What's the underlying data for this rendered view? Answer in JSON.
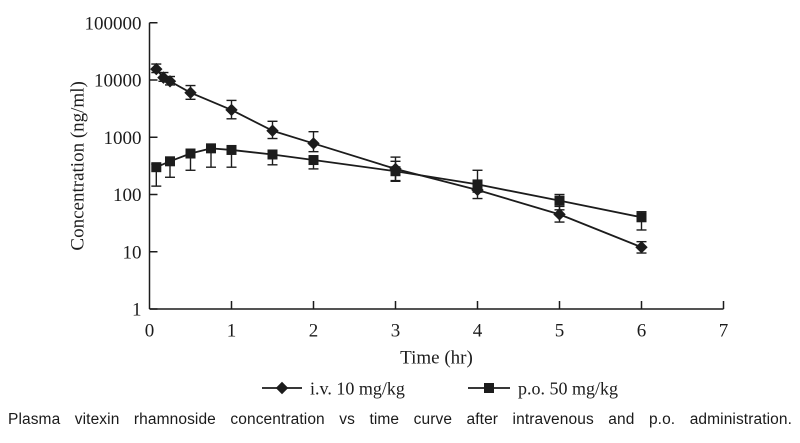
{
  "figure": {
    "caption": "Plasma vitexin rhamnoside concentration vs time curve after intravenous and p.o. administration."
  },
  "chart_data": {
    "type": "line",
    "title": "",
    "xlabel": "Time (hr)",
    "ylabel": "Concentration (ng/ml)",
    "y_scale": "log",
    "xlim": [
      0,
      7
    ],
    "ylim": [
      1,
      100000
    ],
    "x_ticks": [
      0,
      1,
      2,
      3,
      4,
      5,
      6,
      7
    ],
    "y_ticks": [
      1,
      10,
      100,
      1000,
      10000,
      100000
    ],
    "y_tick_labels": [
      "1",
      "10",
      "100",
      "1000",
      "10000",
      "100000"
    ],
    "grid": false,
    "legend_position": "bottom",
    "line_color": "#1c1c1c",
    "series": [
      {
        "name": "i.v. 10 mg/kg",
        "marker": "diamond",
        "x": [
          0.083,
          0.17,
          0.25,
          0.5,
          1.0,
          1.5,
          2.0,
          3.0,
          4.0,
          5.0,
          6.0
        ],
        "y": [
          15500,
          11000,
          9500,
          6000,
          3000,
          1300,
          780,
          280,
          120,
          45,
          12
        ],
        "err_hi": [
          19000,
          13500,
          11500,
          8000,
          4400,
          1900,
          1250,
          450,
          175,
          62,
          15
        ],
        "err_lo": [
          13500,
          9500,
          8200,
          4600,
          2100,
          950,
          560,
          170,
          85,
          33,
          9.5
        ]
      },
      {
        "name": "p.o. 50 mg/kg",
        "marker": "square",
        "x": [
          0.083,
          0.25,
          0.5,
          0.75,
          1.0,
          1.5,
          2.0,
          3.0,
          4.0,
          5.0,
          6.0
        ],
        "y": [
          300,
          380,
          520,
          640,
          600,
          500,
          400,
          255,
          150,
          78,
          40
        ],
        "err_hi": [
          340,
          440,
          580,
          700,
          660,
          550,
          440,
          380,
          265,
          100,
          50
        ],
        "err_lo": [
          140,
          200,
          265,
          300,
          300,
          330,
          280,
          175,
          110,
          54,
          24
        ]
      }
    ]
  }
}
